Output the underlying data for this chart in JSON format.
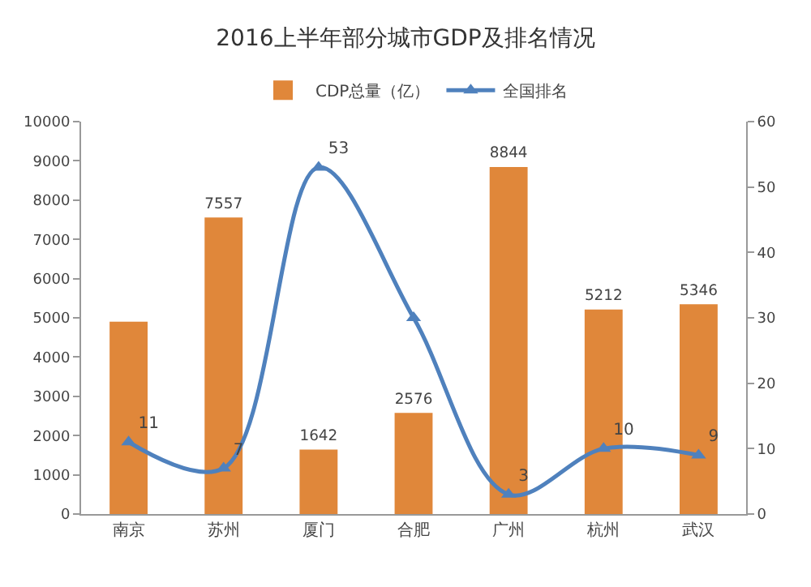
{
  "chart_data": {
    "type": "bar",
    "title": "2016上半年部分城市GDP及排名情况",
    "categories": [
      "南京",
      "苏州",
      "厦门",
      "合肥",
      "广州",
      "杭州",
      "武汉"
    ],
    "series": [
      {
        "name": "CDP总量（亿）",
        "type": "bar",
        "color": "#e0873a",
        "values": [
          4900,
          7557,
          1642,
          2576,
          8844,
          5212,
          5346
        ],
        "value_labels": [
          null,
          "7557",
          "1642",
          "2576",
          "8844",
          "5212",
          "5346"
        ]
      },
      {
        "name": "全国排名",
        "type": "line",
        "axis": "y2",
        "color": "#4f81bd",
        "marker": "triangle",
        "values": [
          11,
          7,
          53,
          30,
          3,
          10,
          9
        ],
        "value_labels": [
          "11",
          "7",
          "53",
          null,
          "3",
          "10",
          "9"
        ]
      }
    ],
    "ylim": [
      0,
      10000
    ],
    "yticks": [
      0,
      1000,
      2000,
      3000,
      4000,
      5000,
      6000,
      7000,
      8000,
      9000,
      10000
    ],
    "y2lim": [
      0,
      60
    ],
    "y2ticks": [
      0,
      10,
      20,
      30,
      40,
      50,
      60
    ],
    "grid": false,
    "legend": "top"
  }
}
